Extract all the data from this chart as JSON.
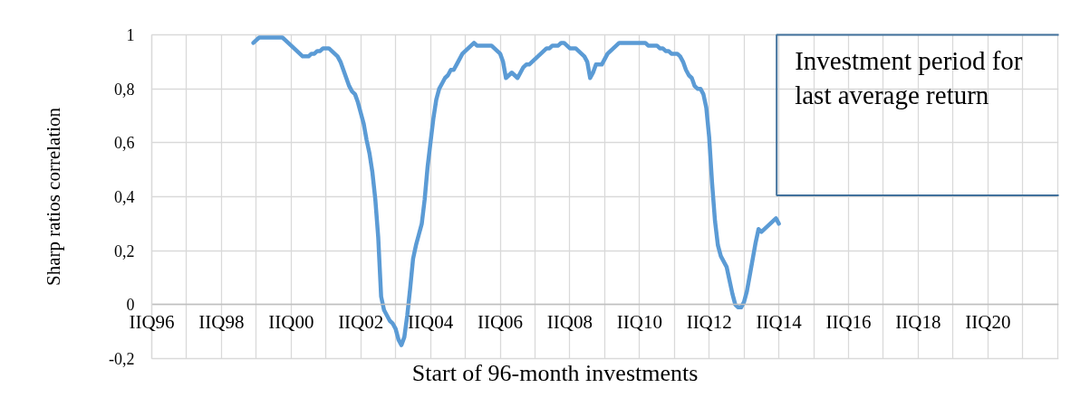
{
  "chart_data": {
    "type": "line",
    "xlabel": "Start of 96-month investments",
    "ylabel": "Sharp ratios correlation",
    "categories": [
      "IIQ96",
      null,
      null,
      null,
      null,
      null,
      null,
      null,
      null,
      null,
      null,
      null,
      null,
      null,
      null,
      null,
      null,
      null,
      null,
      null,
      null,
      null,
      null,
      null,
      "IIQ98",
      null,
      null,
      null,
      null,
      null,
      null,
      null,
      null,
      null,
      null,
      null,
      null,
      null,
      null,
      null,
      null,
      null,
      null,
      null,
      null,
      null,
      null,
      null,
      "IIQ00",
      null,
      null,
      null,
      null,
      null,
      null,
      null,
      null,
      null,
      null,
      null,
      null,
      null,
      null,
      null,
      null,
      null,
      null,
      null,
      null,
      null,
      null,
      null,
      "IIQ02",
      null,
      null,
      null,
      null,
      null,
      null,
      null,
      null,
      null,
      null,
      null,
      null,
      null,
      null,
      null,
      null,
      null,
      null,
      null,
      null,
      null,
      null,
      null,
      "IIQ04",
      null,
      null,
      null,
      null,
      null,
      null,
      null,
      null,
      null,
      null,
      null,
      null,
      null,
      null,
      null,
      null,
      null,
      null,
      null,
      null,
      null,
      null,
      null,
      "IIQ06",
      null,
      null,
      null,
      null,
      null,
      null,
      null,
      null,
      null,
      null,
      null,
      null,
      null,
      null,
      null,
      null,
      null,
      null,
      null,
      null,
      null,
      null,
      null,
      "IIQ08",
      null,
      null,
      null,
      null,
      null,
      null,
      null,
      null,
      null,
      null,
      null,
      null,
      null,
      null,
      null,
      null,
      null,
      null,
      null,
      null,
      null,
      null,
      null,
      "IIQ10",
      null,
      null,
      null,
      null,
      null,
      null,
      null,
      null,
      null,
      null,
      null,
      null,
      null,
      null,
      null,
      null,
      null,
      null,
      null,
      null,
      null,
      null,
      null,
      "IIQ12",
      null,
      null,
      null,
      null,
      null,
      null,
      null,
      null,
      null,
      null,
      null,
      null,
      null,
      null,
      null,
      null,
      null,
      null,
      null,
      null,
      null,
      null,
      null,
      "IIQ14",
      null,
      null,
      null,
      null,
      null,
      null,
      null,
      null,
      null,
      null,
      null,
      null,
      null,
      null,
      null,
      null,
      null,
      null,
      null,
      null,
      null,
      null,
      null,
      "IIQ16",
      null,
      null,
      null,
      null,
      null,
      null,
      null,
      null,
      null,
      null,
      null,
      null,
      null,
      null,
      null,
      null,
      null,
      null,
      null,
      null,
      null,
      null,
      null,
      "IIQ18",
      null,
      null,
      null,
      null,
      null,
      null,
      null,
      null,
      null,
      null,
      null,
      null,
      null,
      null,
      null,
      null,
      null,
      null,
      null,
      null,
      null,
      null,
      null,
      "IIQ20",
      null,
      null,
      null,
      null,
      null,
      null,
      null,
      null,
      null,
      null,
      null,
      null,
      null,
      null,
      null,
      null,
      null,
      null,
      null,
      null,
      null,
      null,
      null,
      null
    ],
    "series": [
      {
        "color": "#5b9bd5",
        "values": [
          null,
          null,
          null,
          null,
          null,
          null,
          null,
          null,
          null,
          null,
          null,
          null,
          null,
          null,
          null,
          null,
          null,
          null,
          null,
          null,
          null,
          null,
          null,
          null,
          null,
          null,
          null,
          null,
          null,
          null,
          null,
          null,
          null,
          null,
          null,
          0.97,
          0.98,
          0.99,
          0.99,
          0.99,
          0.99,
          0.99,
          0.99,
          0.99,
          0.99,
          0.99,
          0.98,
          0.97,
          0.96,
          0.95,
          0.94,
          0.93,
          0.92,
          0.92,
          0.92,
          0.93,
          0.93,
          0.94,
          0.94,
          0.95,
          0.95,
          0.95,
          0.94,
          0.93,
          0.92,
          0.9,
          0.87,
          0.84,
          0.81,
          0.79,
          0.78,
          0.75,
          0.71,
          0.67,
          0.61,
          0.56,
          0.49,
          0.39,
          0.25,
          0.03,
          -0.02,
          -0.04,
          -0.06,
          -0.07,
          -0.09,
          -0.13,
          -0.15,
          -0.12,
          -0.04,
          0.06,
          0.17,
          0.22,
          0.26,
          0.3,
          0.39,
          0.51,
          0.6,
          0.69,
          0.76,
          0.8,
          0.82,
          0.84,
          0.85,
          0.87,
          0.87,
          0.89,
          0.91,
          0.93,
          0.94,
          0.95,
          0.96,
          0.97,
          0.96,
          0.96,
          0.96,
          0.96,
          0.96,
          0.96,
          0.95,
          0.94,
          0.93,
          0.9,
          0.84,
          0.85,
          0.86,
          0.85,
          0.84,
          0.86,
          0.88,
          0.89,
          0.89,
          0.9,
          0.91,
          0.92,
          0.93,
          0.94,
          0.95,
          0.95,
          0.96,
          0.96,
          0.96,
          0.97,
          0.97,
          0.96,
          0.95,
          0.95,
          0.95,
          0.94,
          0.93,
          0.92,
          0.9,
          0.84,
          0.86,
          0.89,
          0.89,
          0.89,
          0.91,
          0.93,
          0.94,
          0.95,
          0.96,
          0.97,
          0.97,
          0.97,
          0.97,
          0.97,
          0.97,
          0.97,
          0.97,
          0.97,
          0.97,
          0.96,
          0.96,
          0.96,
          0.96,
          0.95,
          0.95,
          0.94,
          0.94,
          0.93,
          0.93,
          0.93,
          0.92,
          0.9,
          0.87,
          0.85,
          0.84,
          0.81,
          0.8,
          0.8,
          0.78,
          0.73,
          0.62,
          0.45,
          0.31,
          0.22,
          0.18,
          0.16,
          0.14,
          0.09,
          0.04,
          0.0,
          -0.01,
          -0.01,
          0.01,
          0.05,
          0.11,
          0.17,
          0.23,
          0.28,
          0.27,
          0.28,
          0.29,
          0.3,
          0.31,
          0.32,
          0.3,
          null,
          null,
          null,
          null,
          null,
          null,
          null,
          null,
          null,
          null,
          null,
          null,
          null,
          null,
          null,
          null,
          null,
          null,
          null,
          null,
          null,
          null,
          null,
          null,
          null,
          null,
          null,
          null,
          null,
          null,
          null,
          null,
          null,
          null,
          null,
          null,
          null,
          null,
          null,
          null,
          null,
          null,
          null,
          null,
          null,
          null,
          null,
          null,
          null,
          null,
          null,
          null,
          null,
          null,
          null,
          null,
          null,
          null,
          null,
          null,
          null,
          null,
          null,
          null,
          null,
          null,
          null,
          null,
          null,
          null,
          null,
          null,
          null,
          null,
          null,
          null,
          null,
          null,
          null,
          null,
          null,
          null,
          null,
          null,
          null,
          null,
          null,
          null,
          null,
          null,
          null,
          null,
          null,
          null,
          null,
          null
        ]
      }
    ],
    "ylim": [
      -0.2,
      1
    ],
    "yticks": [
      {
        "value": -0.2,
        "label": "-0,2"
      },
      0,
      {
        "value": 0.2,
        "label": "0,2"
      },
      {
        "value": 0.4,
        "label": "0,4"
      },
      {
        "value": 0.6,
        "label": "0,6"
      },
      {
        "value": 0.8,
        "label": "0,8"
      },
      1
    ],
    "grid": true,
    "annotations": [
      "Investment period for last average return"
    ]
  }
}
